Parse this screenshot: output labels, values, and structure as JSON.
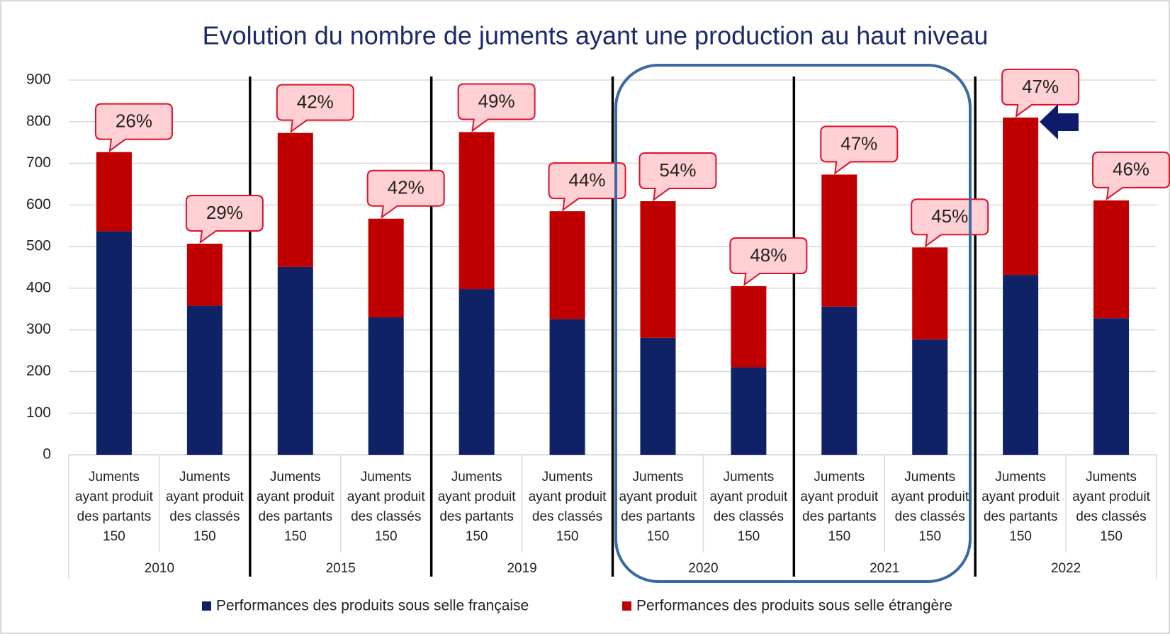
{
  "chart_data": {
    "type": "stacked_bar",
    "title": "Evolution du nombre de juments ayant une production au haut niveau",
    "categories": [
      [
        "Juments",
        "ayant produit",
        "des partants",
        "150"
      ],
      [
        "Juments",
        "ayant produit",
        "des classés",
        "150"
      ],
      [
        "Juments",
        "ayant produit",
        "des partants",
        "150"
      ],
      [
        "Juments",
        "ayant produit",
        "des classés",
        "150"
      ],
      [
        "Juments",
        "ayant produit",
        "des partants",
        "150"
      ],
      [
        "Juments",
        "ayant produit",
        "des classés",
        "150"
      ],
      [
        "Juments",
        "ayant produit",
        "des partants",
        "150"
      ],
      [
        "Juments",
        "ayant produit",
        "des classés",
        "150"
      ],
      [
        "Juments",
        "ayant produit",
        "des partants",
        "150"
      ],
      [
        "Juments",
        "ayant produit",
        "des classés",
        "150"
      ],
      [
        "Juments",
        "ayant produit",
        "des partants",
        "150"
      ],
      [
        "Juments",
        "ayant produit",
        "des classés",
        "150"
      ]
    ],
    "groups": [
      "2010",
      "2015",
      "2019",
      "2020",
      "2021",
      "2022"
    ],
    "series": [
      {
        "name": "Performances des produits sous selle française",
        "color": "#0f2266",
        "values": [
          537,
          358,
          451,
          330,
          398,
          326,
          281,
          210,
          356,
          277,
          432,
          328
        ]
      },
      {
        "name": "Performances des produits sous selle étrangère",
        "color": "#c00000",
        "values": [
          190,
          149,
          322,
          237,
          377,
          259,
          328,
          195,
          317,
          221,
          378,
          283
        ]
      }
    ],
    "annotations": [
      "26%",
      "29%",
      "42%",
      "42%",
      "49%",
      "44%",
      "54%",
      "48%",
      "47%",
      "45%",
      "47%",
      "46%"
    ],
    "ylim": [
      0,
      900
    ],
    "yticks": [
      0,
      100,
      200,
      300,
      400,
      500,
      600,
      700,
      800,
      900
    ],
    "grid": true
  }
}
